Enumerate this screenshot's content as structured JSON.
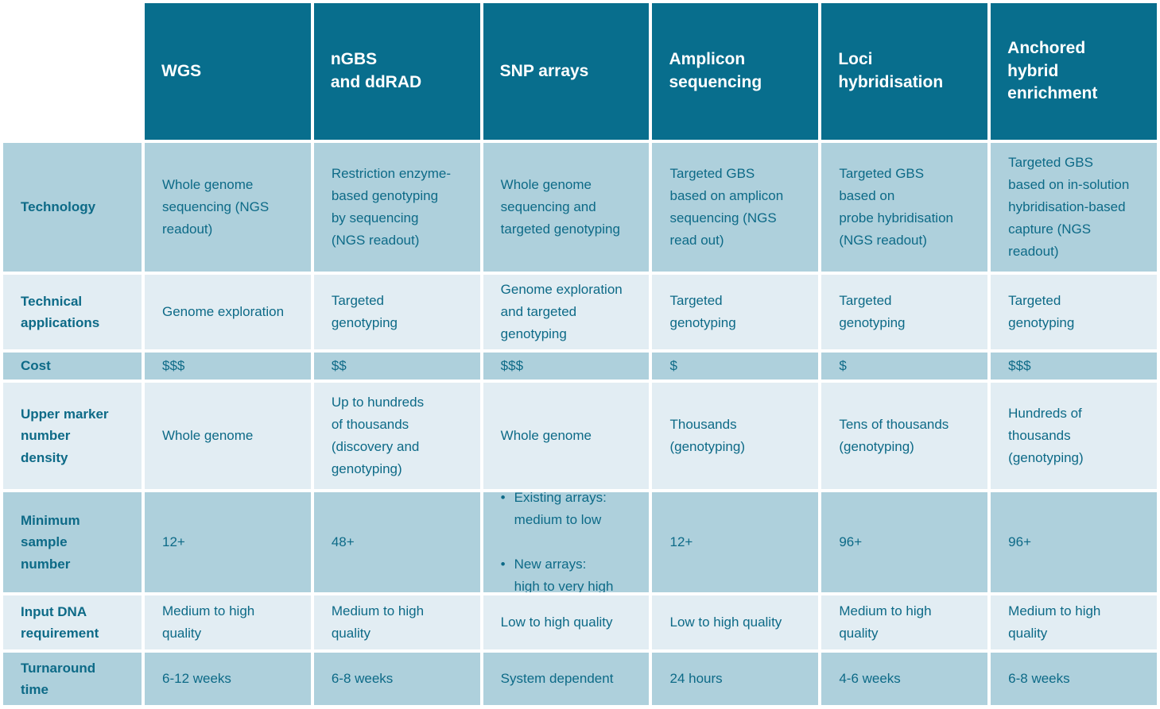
{
  "colors": {
    "header_bg": "#086e8d",
    "header_text": "#ffffff",
    "row_dark_bg": "#aed0dc",
    "row_light_bg": "#e2edf3",
    "body_text": "#0d6a87",
    "gap": "#ffffff"
  },
  "table": {
    "columns": [
      {
        "label": "WGS"
      },
      {
        "label": "nGBS\nand ddRAD"
      },
      {
        "label": "SNP arrays"
      },
      {
        "label": "Amplicon\nsequencing"
      },
      {
        "label": "Loci\nhybridisation"
      },
      {
        "label": "Anchored\nhybrid\nenrichment"
      }
    ],
    "rows": [
      {
        "label": "Technology",
        "shade": "dark",
        "cells": [
          "Whole genome\nsequencing (NGS\nreadout)",
          "Restriction enzyme-\nbased genotyping\nby sequencing\n(NGS readout)",
          "Whole genome\nsequencing and\ntargeted genotyping",
          "Targeted GBS\nbased on amplicon\nsequencing (NGS\nread out)",
          "Targeted GBS\nbased on\nprobe hybridisation\n(NGS readout)",
          "Targeted GBS\nbased on in-solution\nhybridisation-based\ncapture (NGS\nreadout)"
        ]
      },
      {
        "label": "Technical\napplications",
        "shade": "light",
        "cells": [
          "Genome exploration",
          "Targeted\ngenotyping",
          "Genome exploration\nand targeted\ngenotyping",
          "Targeted\ngenotyping",
          "Targeted\ngenotyping",
          "Targeted\ngenotyping"
        ]
      },
      {
        "label": "Cost",
        "shade": "dark",
        "cells": [
          "$$$",
          "$$",
          "$$$",
          "$",
          "$",
          "$$$"
        ]
      },
      {
        "label": "Upper marker\nnumber\ndensity",
        "shade": "light",
        "cells": [
          "Whole genome",
          "Up to hundreds\nof thousands\n(discovery and\ngenotyping)",
          "Whole genome",
          "Thousands\n(genotyping)",
          "Tens of thousands\n(genotyping)",
          "Hundreds of\nthousands\n(genotyping)"
        ]
      },
      {
        "label": "Minimum\nsample\nnumber",
        "shade": "dark",
        "cells": [
          "12+",
          "48+",
          {
            "type": "bullets",
            "items": [
              "Existing arrays:\nmedium to low",
              "New arrays:\nhigh to very high"
            ]
          },
          "12+",
          "96+",
          "96+"
        ]
      },
      {
        "label": "Input DNA\nrequirement",
        "shade": "light",
        "cells": [
          "Medium to high\nquality",
          "Medium to high\nquality",
          "Low to high quality",
          "Low to high quality",
          "Medium to high\nquality",
          "Medium to high\nquality"
        ]
      },
      {
        "label": "Turnaround\ntime",
        "shade": "dark",
        "cells": [
          "6-12 weeks",
          "6-8 weeks",
          "System dependent",
          "24 hours",
          "4-6 weeks",
          "6-8 weeks"
        ]
      }
    ]
  }
}
